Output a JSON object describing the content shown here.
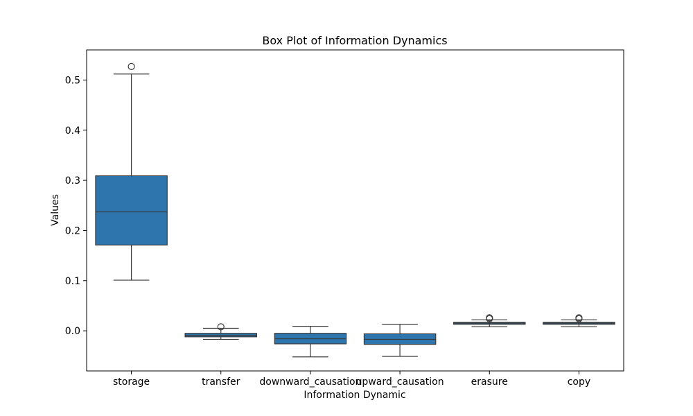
{
  "chart_data": {
    "type": "box",
    "title": "Box Plot of Information Dynamics",
    "xlabel": "Information Dynamic",
    "ylabel": "Values",
    "ylim": [
      -0.08,
      0.56
    ],
    "yticks": [
      0.0,
      0.1,
      0.2,
      0.3,
      0.4,
      0.5
    ],
    "ytick_labels": [
      "0.0",
      "0.1",
      "0.2",
      "0.3",
      "0.4",
      "0.5"
    ],
    "grid": false,
    "box_color": "#2f75ad",
    "line_color": "#3a3a3a",
    "categories": [
      "storage",
      "transfer",
      "downward_causation",
      "upward_causation",
      "erasure",
      "copy"
    ],
    "boxes": [
      {
        "category": "storage",
        "whisker_low": 0.101,
        "q1": 0.171,
        "median": 0.237,
        "q3": 0.309,
        "whisker_high": 0.512,
        "outliers": [
          0.527
        ]
      },
      {
        "category": "transfer",
        "whisker_low": -0.017,
        "q1": -0.012,
        "median": -0.009,
        "q3": -0.005,
        "whisker_high": 0.005,
        "outliers": [
          0.008
        ]
      },
      {
        "category": "downward_causation",
        "whisker_low": -0.052,
        "q1": -0.026,
        "median": -0.016,
        "q3": -0.005,
        "whisker_high": 0.009,
        "outliers": []
      },
      {
        "category": "upward_causation",
        "whisker_low": -0.051,
        "q1": -0.027,
        "median": -0.017,
        "q3": -0.006,
        "whisker_high": 0.013,
        "outliers": []
      },
      {
        "category": "erasure",
        "whisker_low": 0.008,
        "q1": 0.013,
        "median": 0.015,
        "q3": 0.017,
        "whisker_high": 0.022,
        "outliers": [
          0.024,
          0.026
        ]
      },
      {
        "category": "copy",
        "whisker_low": 0.008,
        "q1": 0.013,
        "median": 0.015,
        "q3": 0.017,
        "whisker_high": 0.022,
        "outliers": [
          0.024,
          0.026
        ]
      }
    ]
  }
}
